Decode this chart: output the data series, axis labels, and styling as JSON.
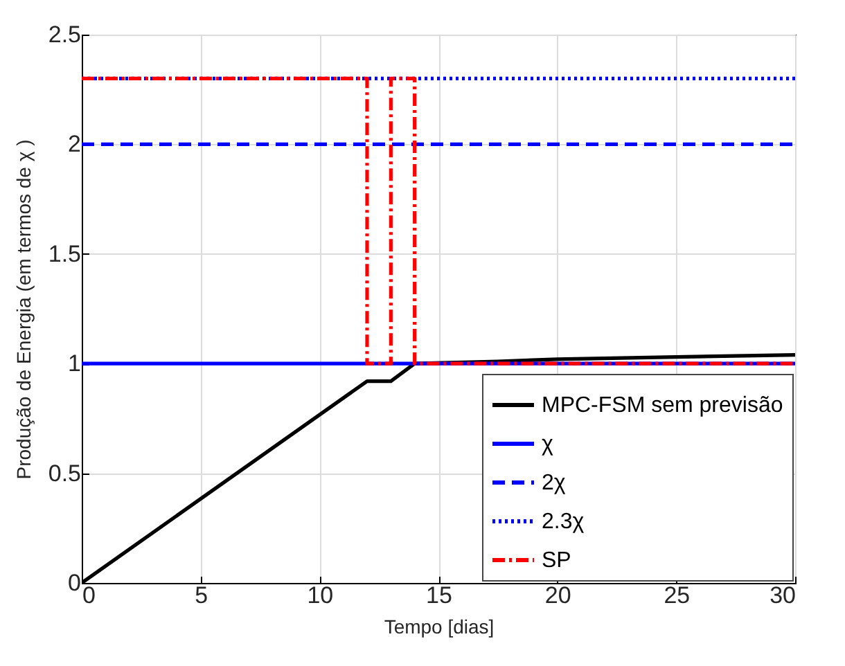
{
  "chart_data": {
    "type": "line",
    "xlabel": "Tempo [dias]",
    "ylabel": "Produção de Energia (em termos de χ )",
    "xlim": [
      0,
      30
    ],
    "xticks": [
      0,
      5,
      10,
      15,
      20,
      25,
      30
    ],
    "ylim": [
      0,
      2.5
    ],
    "yticks": [
      0,
      0.5,
      1,
      1.5,
      2,
      2.5
    ],
    "grid": true,
    "legend": "bottom right",
    "series": [
      {
        "name": "MPC-FSM sem previsão",
        "color": "#000000",
        "line_style": "solid",
        "x": [
          0,
          12,
          13,
          14,
          17.5,
          20,
          25,
          30
        ],
        "values": [
          0,
          0.92,
          0.92,
          1.0,
          1.01,
          1.02,
          1.03,
          1.04
        ]
      },
      {
        "name": "χ",
        "color": "#0000ff",
        "line_style": "solid",
        "x": [
          0,
          30
        ],
        "values": [
          1,
          1
        ]
      },
      {
        "name": "2χ",
        "color": "#0000ff",
        "line_style": "dashed",
        "x": [
          0,
          30
        ],
        "values": [
          2,
          2
        ]
      },
      {
        "name": "2.3χ",
        "color": "#0000ff",
        "line_style": "dotted",
        "x": [
          0,
          30
        ],
        "values": [
          2.3,
          2.3
        ]
      },
      {
        "name": "SP",
        "color": "#ff0000",
        "line_style": "dashdot",
        "x": [
          0,
          12,
          12,
          13,
          13,
          14,
          14,
          30
        ],
        "values": [
          2.3,
          2.3,
          1,
          1,
          2.3,
          2.3,
          1,
          1
        ]
      }
    ]
  }
}
